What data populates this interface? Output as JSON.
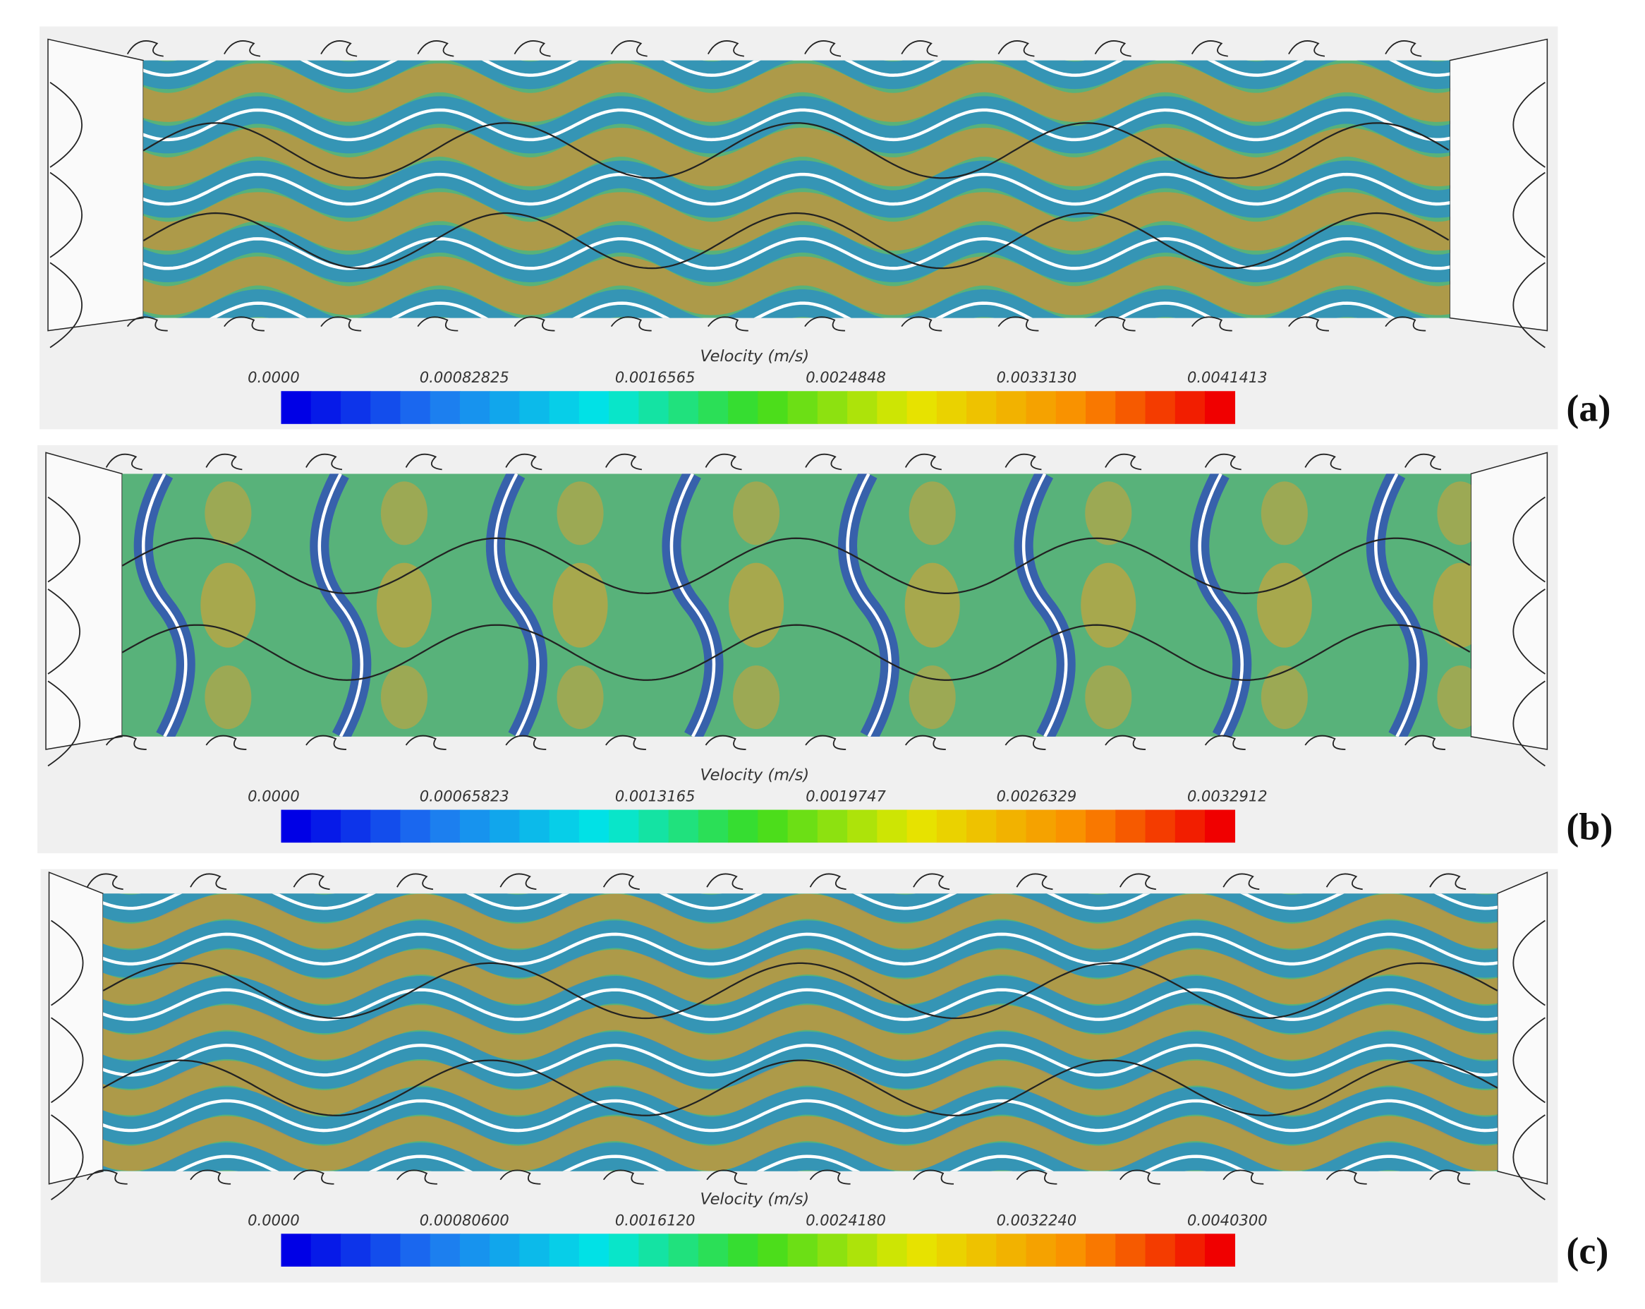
{
  "panels": [
    {
      "label": "(a)",
      "colorbar": {
        "title": "Velocity (m/s)",
        "ticks": [
          "0.0000",
          "0.00082825",
          "0.0016565",
          "0.0024848",
          "0.0033130",
          "0.0041413"
        ]
      }
    },
    {
      "label": "(b)",
      "colorbar": {
        "title": "Velocity (m/s)",
        "ticks": [
          "0.0000",
          "0.00065823",
          "0.0013165",
          "0.0019747",
          "0.0026329",
          "0.0032912"
        ]
      }
    },
    {
      "label": "(c)",
      "colorbar": {
        "title": "Velocity (m/s)",
        "ticks": [
          "0.0000",
          "0.00080600",
          "0.0016120",
          "0.0024180",
          "0.0032240",
          "0.0040300"
        ]
      }
    }
  ]
}
